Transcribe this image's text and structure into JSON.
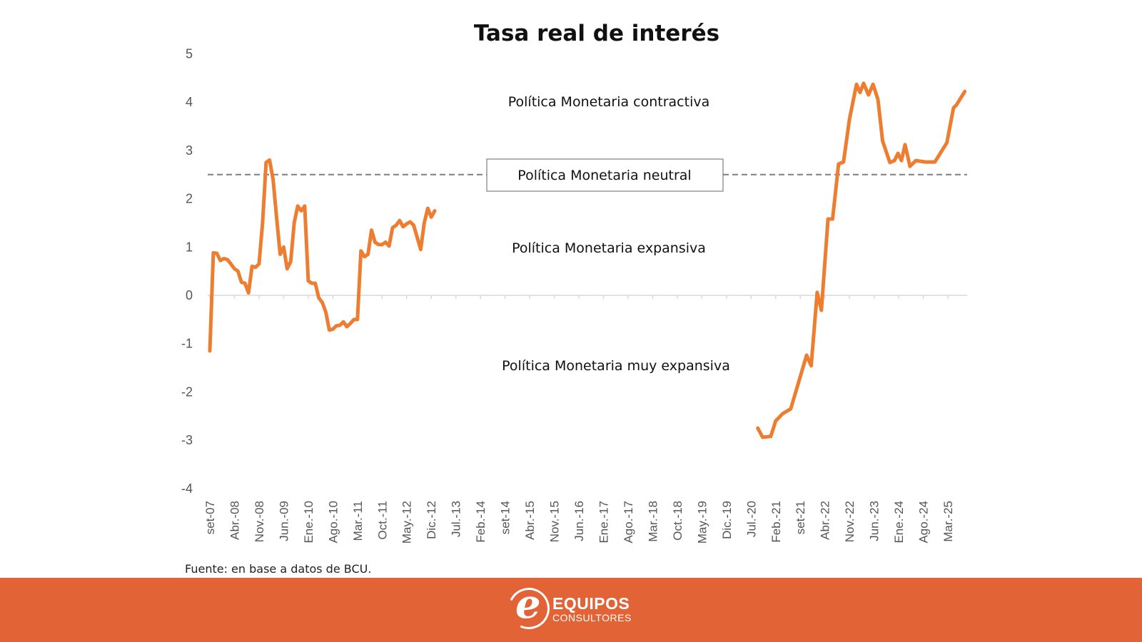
{
  "chart_data": {
    "type": "line",
    "title": "Tasa real de interés",
    "xlabel": "",
    "ylabel": "",
    "ylim": [
      -4,
      5
    ],
    "yticks": [
      "5",
      "4",
      "3",
      "2",
      "1",
      "0",
      "-1",
      "-2",
      "-3",
      "-4"
    ],
    "ytick_values": [
      5,
      4,
      3,
      2,
      1,
      0,
      -1,
      -2,
      -3,
      -4
    ],
    "x_unit": "months since set-07",
    "xticks": [
      "set-07",
      "Abr.-08",
      "Nov.-08",
      "Jun.-09",
      "Ene.-10",
      "Ago.-10",
      "Mar.-11",
      "Oct.-11",
      "May.-12",
      "Dic.-12",
      "Jul.-13",
      "Feb.-14",
      "set-14",
      "Abr.-15",
      "Nov.-15",
      "Jun.-16",
      "Ene.-17",
      "Ago.-17",
      "Mar.-18",
      "Oct.-18",
      "May.-19",
      "Dic.-19",
      "Jul.-20",
      "Feb.-21",
      "set-21",
      "Abr.-22",
      "Nov.-22",
      "Jun.-23",
      "Ene.-24",
      "Ago.-24",
      "Mar.-25"
    ],
    "xtick_step_months": 7,
    "reference_line": {
      "value": 2.5,
      "label": "Política Monetaria neutral",
      "style": "dashed",
      "color": "#7F7F7F"
    },
    "zero_line": true,
    "annotations": [
      "Política Monetaria contractiva",
      "Política Monetaria expansiva",
      "Política Monetaria muy expansiva"
    ],
    "series": [
      {
        "name": "Tasa real de interés",
        "color": "#ED7D31",
        "segments": [
          [
            [
              0,
              -1.15
            ],
            [
              1,
              0.88
            ],
            [
              2,
              0.87
            ],
            [
              3,
              0.72
            ],
            [
              4,
              0.76
            ],
            [
              5,
              0.74
            ],
            [
              6,
              0.65
            ],
            [
              7,
              0.55
            ],
            [
              8,
              0.5
            ],
            [
              9,
              0.27
            ],
            [
              10,
              0.25
            ],
            [
              11,
              0.05
            ],
            [
              12,
              0.6
            ],
            [
              13,
              0.58
            ],
            [
              14,
              0.65
            ],
            [
              15,
              1.5
            ],
            [
              16,
              2.75
            ],
            [
              17,
              2.8
            ],
            [
              18,
              2.4
            ],
            [
              19,
              1.6
            ],
            [
              20,
              0.85
            ],
            [
              21,
              1.0
            ],
            [
              22,
              0.55
            ],
            [
              23,
              0.7
            ],
            [
              24,
              1.5
            ],
            [
              25,
              1.85
            ],
            [
              26,
              1.75
            ],
            [
              27,
              1.85
            ],
            [
              28,
              0.3
            ],
            [
              29,
              0.25
            ],
            [
              30,
              0.25
            ],
            [
              31,
              -0.05
            ],
            [
              32,
              -0.15
            ],
            [
              33,
              -0.35
            ],
            [
              34,
              -0.72
            ],
            [
              35,
              -0.7
            ],
            [
              36,
              -0.63
            ],
            [
              37,
              -0.62
            ],
            [
              38,
              -0.55
            ],
            [
              39,
              -0.65
            ],
            [
              40,
              -0.58
            ],
            [
              41,
              -0.5
            ],
            [
              42,
              -0.5
            ],
            [
              43,
              0.92
            ],
            [
              44,
              0.8
            ],
            [
              45,
              0.85
            ],
            [
              46,
              1.35
            ],
            [
              47,
              1.1
            ],
            [
              48,
              1.05
            ],
            [
              49,
              1.05
            ],
            [
              50,
              1.1
            ],
            [
              51,
              1.02
            ],
            [
              52,
              1.4
            ],
            [
              53,
              1.45
            ],
            [
              54,
              1.55
            ],
            [
              55,
              1.42
            ],
            [
              56,
              1.48
            ],
            [
              57,
              1.52
            ],
            [
              58,
              1.45
            ],
            [
              59,
              1.2
            ],
            [
              60,
              0.95
            ],
            [
              61,
              1.5
            ],
            [
              62,
              1.8
            ],
            [
              63,
              1.62
            ],
            [
              64,
              1.75
            ]
          ],
          [
            [
              155.9,
              -2.75
            ],
            [
              157.3,
              -2.94
            ],
            [
              159.6,
              -2.92
            ],
            [
              161,
              -2.6
            ],
            [
              163,
              -2.45
            ],
            [
              165.3,
              -2.35
            ],
            [
              167,
              -1.93
            ],
            [
              169.8,
              -1.24
            ],
            [
              171.1,
              -1.46
            ],
            [
              172.8,
              0.06
            ],
            [
              174,
              -0.31
            ],
            [
              175.9,
              1.58
            ],
            [
              177.2,
              1.58
            ],
            [
              178.9,
              2.72
            ],
            [
              180.3,
              2.76
            ],
            [
              182,
              3.65
            ],
            [
              184,
              4.37
            ],
            [
              185,
              4.2
            ],
            [
              186,
              4.39
            ],
            [
              187.4,
              4.15
            ],
            [
              188.7,
              4.37
            ],
            [
              190.1,
              4.05
            ],
            [
              191.4,
              3.2
            ],
            [
              193.5,
              2.75
            ],
            [
              194.8,
              2.79
            ],
            [
              195.8,
              2.94
            ],
            [
              196.8,
              2.79
            ],
            [
              197.8,
              3.12
            ],
            [
              199.2,
              2.67
            ],
            [
              200.9,
              2.79
            ],
            [
              203.6,
              2.76
            ],
            [
              206.3,
              2.76
            ],
            [
              209.7,
              3.16
            ],
            [
              211.6,
              3.88
            ],
            [
              212.4,
              3.94
            ],
            [
              214.8,
              4.22
            ]
          ]
        ]
      }
    ]
  },
  "source_note": "Fuente: en base a datos de BCU.",
  "footer": {
    "brand": "EQUIPOS",
    "brand_sub": "CONSULTORES",
    "logo_letter": "e",
    "color": "#E26436"
  }
}
